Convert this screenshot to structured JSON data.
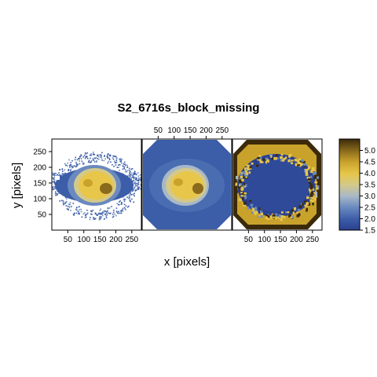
{
  "chart_data": {
    "type": "heatmap",
    "title": "S2_6716s_block_missing",
    "xlabel": "x [pixels]",
    "ylabel": "y [pixels]",
    "panels": 3,
    "x_ticks": [
      50,
      100,
      150,
      200,
      250
    ],
    "x_tick_labels": [
      "50",
      "100",
      "150",
      "200",
      "250"
    ],
    "y_ticks": [
      50,
      100,
      150,
      200,
      250
    ],
    "y_tick_labels": [
      "50",
      "100",
      "150",
      "200",
      "250"
    ],
    "xlim": [
      0,
      280
    ],
    "ylim": [
      0,
      290
    ],
    "colorbar": {
      "range": [
        1.5,
        5.5
      ],
      "ticks": [
        1.5,
        2.0,
        2.5,
        3.0,
        3.5,
        4.0,
        4.5,
        5.0
      ],
      "tick_labels": [
        "1.5",
        "2.0",
        "2.5",
        "3.0",
        "3.5",
        "4.0",
        "4.5",
        "5.0"
      ],
      "colors": [
        "#2b3f8f",
        "#3c5da8",
        "#6a89bf",
        "#a7b8c8",
        "#d4c98a",
        "#e7c64a",
        "#c9a22c",
        "#8a6a1c",
        "#3b2a0a"
      ]
    }
  }
}
